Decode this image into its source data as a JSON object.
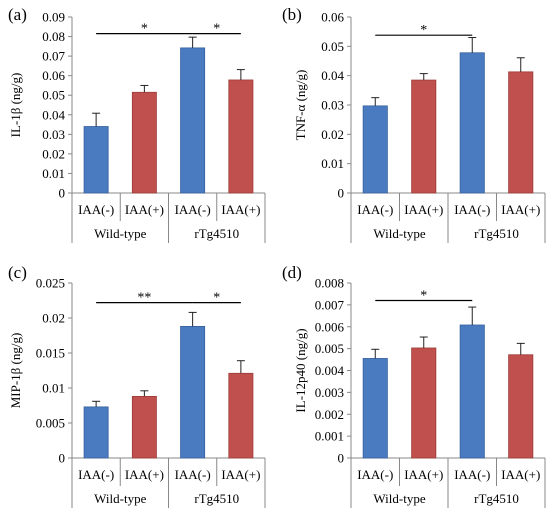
{
  "chart_data": [
    {
      "type": "bar",
      "panel_label": "(a)",
      "ylabel": "IL-1β (ng/g)",
      "ylim": [
        0,
        0.09
      ],
      "yticks": [
        "0",
        "0.01",
        "0.02",
        "0.03",
        "0.04",
        "0.05",
        "0.06",
        "0.07",
        "0.08",
        "0.09"
      ],
      "categories": [
        "IAA(-)",
        "IAA(+)",
        "IAA(-)",
        "IAA(+)"
      ],
      "groups": [
        "Wild-type",
        "rTg4510"
      ],
      "values": [
        0.034,
        0.0515,
        0.0742,
        0.0578
      ],
      "errors": [
        0.0068,
        0.0035,
        0.0055,
        0.0053
      ],
      "colors": [
        "#4a7bc0",
        "#c0504d",
        "#4a7bc0",
        "#c0504d"
      ],
      "significance": [
        {
          "from": 0,
          "to": 2,
          "label": "*",
          "y": 0.0815
        },
        {
          "from": 2,
          "to": 3,
          "label": "*",
          "y": 0.0815
        }
      ]
    },
    {
      "type": "bar",
      "panel_label": "(b)",
      "ylabel": "TNF-α (ng/g)",
      "ylim": [
        0,
        0.06
      ],
      "yticks": [
        "0",
        "0.01",
        "0.02",
        "0.03",
        "0.04",
        "0.05",
        "0.06"
      ],
      "categories": [
        "IAA(-)",
        "IAA(+)",
        "IAA(-)",
        "IAA(+)"
      ],
      "groups": [
        "Wild-type",
        "rTg4510"
      ],
      "values": [
        0.0297,
        0.0385,
        0.0478,
        0.0413
      ],
      "errors": [
        0.0028,
        0.0022,
        0.0052,
        0.0048
      ],
      "colors": [
        "#4a7bc0",
        "#c0504d",
        "#4a7bc0",
        "#c0504d"
      ],
      "significance": [
        {
          "from": 0,
          "to": 2,
          "label": "*",
          "y": 0.0538
        }
      ]
    },
    {
      "type": "bar",
      "panel_label": "(c)",
      "ylabel": "MIP-1β (ng/g)",
      "ylim": [
        0,
        0.025
      ],
      "yticks": [
        "0",
        "0.005",
        "0.01",
        "0.015",
        "0.02",
        "0.025"
      ],
      "categories": [
        "IAA(-)",
        "IAA(+)",
        "IAA(-)",
        "IAA(+)"
      ],
      "groups": [
        "Wild-type",
        "rTg4510"
      ],
      "values": [
        0.0073,
        0.0088,
        0.0188,
        0.0121
      ],
      "errors": [
        0.0008,
        0.0008,
        0.002,
        0.0018
      ],
      "colors": [
        "#4a7bc0",
        "#c0504d",
        "#4a7bc0",
        "#c0504d"
      ],
      "significance": [
        {
          "from": 0,
          "to": 2,
          "label": "**",
          "y": 0.0222
        },
        {
          "from": 2,
          "to": 3,
          "label": "*",
          "y": 0.0222
        }
      ]
    },
    {
      "type": "bar",
      "panel_label": "(d)",
      "ylabel": "IL-12p40 (ng/g)",
      "ylim": [
        0,
        0.008
      ],
      "yticks": [
        "0",
        "0.001",
        "0.002",
        "0.003",
        "0.004",
        "0.005",
        "0.006",
        "0.007",
        "0.008"
      ],
      "categories": [
        "IAA(-)",
        "IAA(+)",
        "IAA(-)",
        "IAA(+)"
      ],
      "groups": [
        "Wild-type",
        "rTg4510"
      ],
      "values": [
        0.00455,
        0.00503,
        0.00608,
        0.00472
      ],
      "errors": [
        0.00042,
        0.0005,
        0.00082,
        0.00052
      ],
      "colors": [
        "#4a7bc0",
        "#c0504d",
        "#4a7bc0",
        "#c0504d"
      ],
      "significance": [
        {
          "from": 0,
          "to": 2,
          "label": "*",
          "y": 0.0072
        }
      ]
    }
  ]
}
